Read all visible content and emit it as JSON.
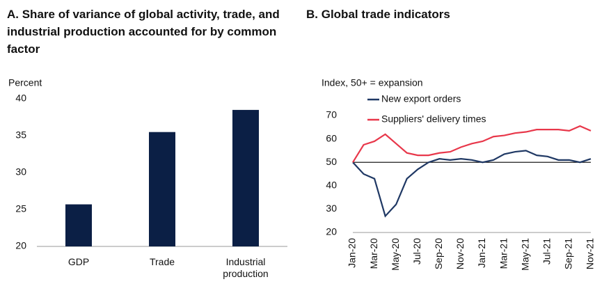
{
  "chart_data": [
    {
      "type": "bar",
      "title": "A. Share of variance of global activity, trade, and industrial production accounted for by common factor",
      "ylabel": "Percent",
      "categories": [
        "GDP",
        "Trade",
        "Industrial production"
      ],
      "values": [
        25.7,
        35.5,
        38.5
      ],
      "color": "#0b1f45",
      "ylim": [
        20,
        40
      ],
      "yticks": [
        20,
        25,
        30,
        35,
        40
      ],
      "grid": false
    },
    {
      "type": "line",
      "title": "B. Global trade indicators",
      "ylabel": "Index, 50+ = expansion",
      "categories": [
        "Jan-20",
        null,
        "Mar-20",
        null,
        "May-20",
        null,
        "Jul-20",
        null,
        "Sep-20",
        null,
        "Nov-20",
        null,
        "Jan-21",
        null,
        "Mar-21",
        null,
        "May-21",
        null,
        "Jul-21",
        null,
        "Sep-21",
        null,
        "Nov-21"
      ],
      "series": [
        {
          "name": "New export orders",
          "color": "#1f3864",
          "values": [
            50,
            45,
            43,
            27,
            32,
            43,
            47,
            50,
            51.5,
            51,
            51.5,
            51,
            50,
            51,
            53.5,
            54.5,
            55,
            53,
            52.5,
            51,
            51,
            50,
            51.5
          ]
        },
        {
          "name": "Suppliers' delivery times",
          "color": "#e8374a",
          "values": [
            50,
            57.5,
            59,
            62,
            58,
            54,
            53,
            53,
            54,
            54.5,
            56.5,
            58,
            59,
            61,
            61.5,
            62.5,
            63,
            64,
            64,
            64,
            63.5,
            65.5,
            63.5
          ]
        }
      ],
      "hline": 50,
      "ylim": [
        20,
        70
      ],
      "yticks": [
        20,
        30,
        40,
        50,
        60,
        70
      ],
      "grid": false,
      "legend": "top-left"
    }
  ]
}
